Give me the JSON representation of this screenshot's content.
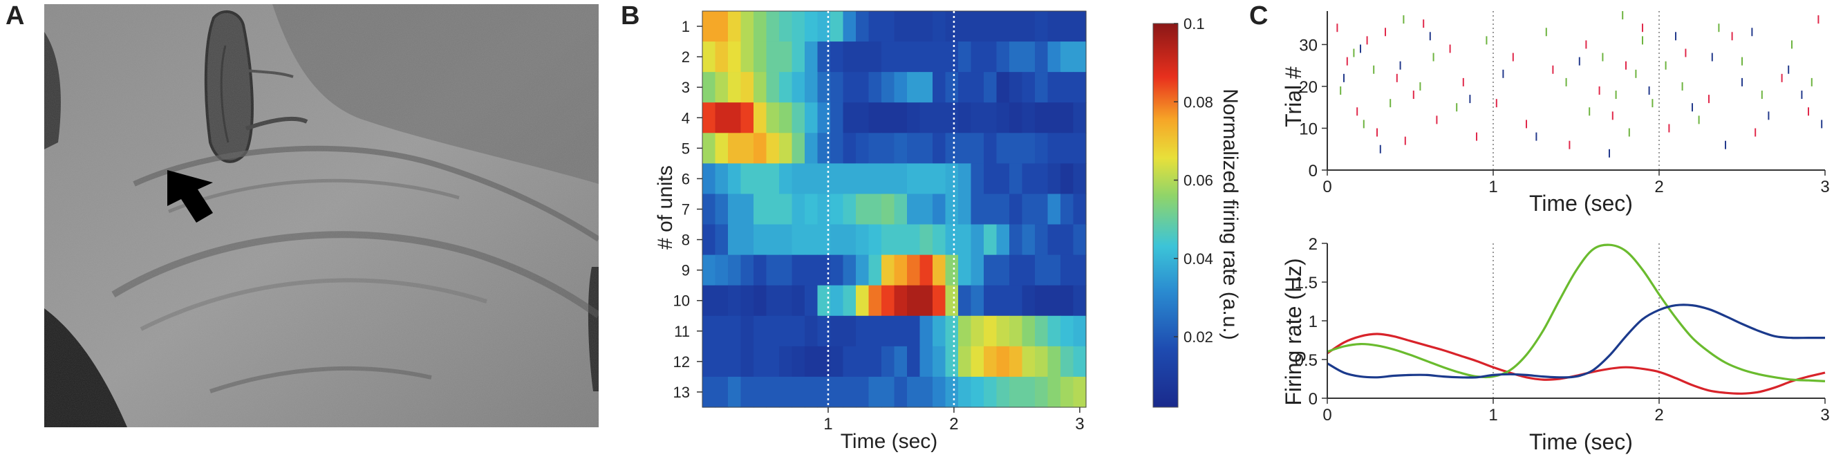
{
  "panels": {
    "a": {
      "letter": "A"
    },
    "b": {
      "letter": "B"
    },
    "c": {
      "letter": "C"
    }
  },
  "chart_data": [
    {
      "panel": "A",
      "type": "other",
      "description_free": true
    },
    {
      "panel": "B",
      "type": "heatmap",
      "xlabel": "Time (sec)",
      "ylabel": "# of units",
      "xlim": [
        0,
        3.05
      ],
      "xticks": [
        1,
        2,
        3
      ],
      "xtick_labels": [
        "1",
        "2",
        "3"
      ],
      "row_labels": [
        "1",
        "2",
        "3",
        "4",
        "5",
        "6",
        "7",
        "8",
        "9",
        "10",
        "11",
        "12",
        "13"
      ],
      "dashed_vlines": [
        1,
        2
      ],
      "colorbar": {
        "label": "Normalized firing rate (a.u.)",
        "range": [
          0.002,
          0.1
        ],
        "ticks": [
          0.02,
          0.04,
          0.06,
          0.08,
          0.1
        ],
        "tick_labels": [
          "0.02",
          "0.04",
          "0.06",
          "0.08",
          "0.1"
        ]
      },
      "n_cols": 30,
      "bin_width_sec": 0.1,
      "values": [
        [
          0.075,
          0.075,
          0.068,
          0.06,
          0.055,
          0.05,
          0.047,
          0.045,
          0.042,
          0.04,
          0.045,
          0.03,
          0.02,
          0.015,
          0.015,
          0.012,
          0.012,
          0.012,
          0.014,
          0.012,
          0.012,
          0.012,
          0.012,
          0.012,
          0.012,
          0.012,
          0.014,
          0.012,
          0.012,
          0.012
        ],
        [
          0.065,
          0.07,
          0.066,
          0.06,
          0.055,
          0.05,
          0.05,
          0.045,
          0.035,
          0.02,
          0.015,
          0.012,
          0.012,
          0.012,
          0.015,
          0.015,
          0.015,
          0.015,
          0.015,
          0.015,
          0.02,
          0.015,
          0.015,
          0.02,
          0.025,
          0.025,
          0.02,
          0.03,
          0.035,
          0.035
        ],
        [
          0.055,
          0.06,
          0.065,
          0.068,
          0.058,
          0.05,
          0.045,
          0.04,
          0.035,
          0.025,
          0.02,
          0.015,
          0.015,
          0.02,
          0.025,
          0.03,
          0.035,
          0.035,
          0.015,
          0.02,
          0.015,
          0.015,
          0.02,
          0.008,
          0.012,
          0.015,
          0.02,
          0.015,
          0.015,
          0.015
        ],
        [
          0.085,
          0.09,
          0.09,
          0.085,
          0.068,
          0.058,
          0.055,
          0.048,
          0.04,
          0.03,
          0.02,
          0.01,
          0.01,
          0.008,
          0.008,
          0.008,
          0.01,
          0.012,
          0.012,
          0.012,
          0.01,
          0.012,
          0.012,
          0.01,
          0.008,
          0.01,
          0.008,
          0.008,
          0.008,
          0.012
        ],
        [
          0.058,
          0.065,
          0.072,
          0.072,
          0.075,
          0.068,
          0.062,
          0.052,
          0.035,
          0.025,
          0.02,
          0.015,
          0.018,
          0.02,
          0.02,
          0.022,
          0.02,
          0.02,
          0.015,
          0.02,
          0.02,
          0.02,
          0.015,
          0.02,
          0.02,
          0.02,
          0.018,
          0.015,
          0.015,
          0.015
        ],
        [
          0.03,
          0.035,
          0.04,
          0.045,
          0.045,
          0.045,
          0.04,
          0.038,
          0.038,
          0.038,
          0.038,
          0.038,
          0.038,
          0.038,
          0.038,
          0.038,
          0.04,
          0.04,
          0.04,
          0.038,
          0.035,
          0.02,
          0.015,
          0.015,
          0.02,
          0.015,
          0.015,
          0.012,
          0.008,
          0.012
        ],
        [
          0.02,
          0.025,
          0.035,
          0.035,
          0.045,
          0.045,
          0.045,
          0.04,
          0.042,
          0.04,
          0.042,
          0.045,
          0.05,
          0.05,
          0.052,
          0.048,
          0.035,
          0.035,
          0.03,
          0.038,
          0.035,
          0.02,
          0.02,
          0.02,
          0.015,
          0.02,
          0.02,
          0.03,
          0.02,
          0.015
        ],
        [
          0.015,
          0.02,
          0.035,
          0.035,
          0.038,
          0.038,
          0.038,
          0.04,
          0.04,
          0.04,
          0.038,
          0.038,
          0.04,
          0.042,
          0.045,
          0.045,
          0.045,
          0.048,
          0.045,
          0.04,
          0.04,
          0.035,
          0.045,
          0.035,
          0.02,
          0.025,
          0.02,
          0.015,
          0.015,
          0.02
        ],
        [
          0.03,
          0.028,
          0.025,
          0.02,
          0.015,
          0.02,
          0.02,
          0.015,
          0.015,
          0.015,
          0.018,
          0.025,
          0.035,
          0.045,
          0.07,
          0.075,
          0.08,
          0.085,
          0.072,
          0.055,
          0.04,
          0.035,
          0.02,
          0.02,
          0.015,
          0.015,
          0.02,
          0.02,
          0.015,
          0.015
        ],
        [
          0.01,
          0.01,
          0.012,
          0.01,
          0.008,
          0.012,
          0.012,
          0.01,
          0.015,
          0.045,
          0.04,
          0.045,
          0.065,
          0.08,
          0.085,
          0.092,
          0.095,
          0.095,
          0.085,
          0.06,
          0.02,
          0.025,
          0.015,
          0.015,
          0.015,
          0.01,
          0.008,
          0.008,
          0.008,
          0.012
        ],
        [
          0.015,
          0.015,
          0.015,
          0.012,
          0.015,
          0.015,
          0.015,
          0.015,
          0.012,
          0.015,
          0.012,
          0.012,
          0.015,
          0.015,
          0.015,
          0.015,
          0.015,
          0.03,
          0.038,
          0.045,
          0.058,
          0.062,
          0.065,
          0.062,
          0.06,
          0.055,
          0.05,
          0.045,
          0.042,
          0.04
        ],
        [
          0.015,
          0.015,
          0.015,
          0.012,
          0.015,
          0.015,
          0.012,
          0.01,
          0.008,
          0.008,
          0.01,
          0.015,
          0.015,
          0.015,
          0.02,
          0.025,
          0.015,
          0.03,
          0.035,
          0.045,
          0.06,
          0.065,
          0.072,
          0.075,
          0.072,
          0.062,
          0.06,
          0.055,
          0.048,
          0.045
        ],
        [
          0.02,
          0.02,
          0.025,
          0.02,
          0.02,
          0.02,
          0.02,
          0.02,
          0.02,
          0.02,
          0.02,
          0.02,
          0.02,
          0.025,
          0.025,
          0.02,
          0.025,
          0.025,
          0.03,
          0.035,
          0.04,
          0.042,
          0.045,
          0.048,
          0.05,
          0.05,
          0.052,
          0.055,
          0.058,
          0.06
        ]
      ]
    },
    {
      "panel": "C-top",
      "type": "scatter",
      "xlabel": "Time (sec)",
      "ylabel": "Trial #",
      "xlim": [
        0,
        3
      ],
      "ylim": [
        0,
        38
      ],
      "xticks": [
        0,
        1,
        2,
        3
      ],
      "yticks": [
        0,
        10,
        20,
        30
      ],
      "dashed_vlines": [
        1,
        2
      ],
      "series": [
        {
          "color": "#e0284a",
          "points": [
            [
              0.06,
              34
            ],
            [
              0.12,
              26
            ],
            [
              0.18,
              14
            ],
            [
              0.24,
              31
            ],
            [
              0.3,
              9
            ],
            [
              0.35,
              33
            ],
            [
              0.42,
              22
            ],
            [
              0.47,
              7
            ],
            [
              0.52,
              18
            ],
            [
              0.58,
              35
            ],
            [
              0.66,
              12
            ],
            [
              0.74,
              29
            ],
            [
              0.82,
              21
            ],
            [
              0.9,
              8
            ],
            [
              1.02,
              16
            ],
            [
              1.12,
              27
            ],
            [
              1.2,
              11
            ],
            [
              1.36,
              24
            ],
            [
              1.46,
              6
            ],
            [
              1.56,
              30
            ],
            [
              1.64,
              19
            ],
            [
              1.72,
              13
            ],
            [
              1.8,
              25
            ],
            [
              1.9,
              34
            ],
            [
              2.06,
              10
            ],
            [
              2.16,
              28
            ],
            [
              2.3,
              17
            ],
            [
              2.44,
              32
            ],
            [
              2.58,
              9
            ],
            [
              2.74,
              22
            ],
            [
              2.9,
              14
            ],
            [
              2.96,
              36
            ]
          ]
        },
        {
          "color": "#6db33f",
          "points": [
            [
              0.08,
              19
            ],
            [
              0.16,
              28
            ],
            [
              0.22,
              11
            ],
            [
              0.28,
              24
            ],
            [
              0.38,
              16
            ],
            [
              0.46,
              36
            ],
            [
              0.56,
              20
            ],
            [
              0.64,
              27
            ],
            [
              0.78,
              15
            ],
            [
              0.96,
              31
            ],
            [
              1.32,
              33
            ],
            [
              1.44,
              21
            ],
            [
              1.58,
              14
            ],
            [
              1.66,
              27
            ],
            [
              1.74,
              18
            ],
            [
              1.78,
              37
            ],
            [
              1.82,
              9
            ],
            [
              1.86,
              23
            ],
            [
              1.9,
              31
            ],
            [
              1.96,
              16
            ],
            [
              2.04,
              25
            ],
            [
              2.14,
              20
            ],
            [
              2.24,
              12
            ],
            [
              2.36,
              34
            ],
            [
              2.5,
              26
            ],
            [
              2.62,
              18
            ],
            [
              2.8,
              30
            ],
            [
              2.92,
              21
            ]
          ]
        },
        {
          "color": "#233a8c",
          "points": [
            [
              0.1,
              22
            ],
            [
              0.2,
              29
            ],
            [
              0.32,
              5
            ],
            [
              0.44,
              25
            ],
            [
              0.62,
              32
            ],
            [
              0.86,
              17
            ],
            [
              1.06,
              23
            ],
            [
              1.26,
              8
            ],
            [
              1.52,
              26
            ],
            [
              1.7,
              4
            ],
            [
              1.94,
              19
            ],
            [
              2.1,
              32
            ],
            [
              2.2,
              15
            ],
            [
              2.32,
              27
            ],
            [
              2.4,
              6
            ],
            [
              2.5,
              21
            ],
            [
              2.56,
              33
            ],
            [
              2.66,
              13
            ],
            [
              2.78,
              24
            ],
            [
              2.86,
              18
            ],
            [
              2.98,
              11
            ]
          ]
        }
      ]
    },
    {
      "panel": "C-bottom",
      "type": "line",
      "xlabel": "Time (sec)",
      "ylabel": "Firing rate (Hz)",
      "xlim": [
        0,
        3
      ],
      "ylim": [
        0,
        2
      ],
      "xticks": [
        0,
        1,
        2,
        3
      ],
      "yticks": [
        0,
        0.5,
        1,
        1.5,
        2
      ],
      "ytick_labels": [
        "0",
        "0.5",
        "1",
        "1.5",
        "2"
      ],
      "dashed_vlines": [
        1,
        2
      ],
      "x": [
        0,
        0.1,
        0.2,
        0.3,
        0.4,
        0.5,
        0.6,
        0.7,
        0.8,
        0.9,
        1.0,
        1.1,
        1.2,
        1.3,
        1.4,
        1.5,
        1.6,
        1.7,
        1.8,
        1.9,
        2.0,
        2.1,
        2.2,
        2.3,
        2.4,
        2.5,
        2.6,
        2.7,
        2.8,
        2.9,
        3.0
      ],
      "series": [
        {
          "color": "#d8232a",
          "values": [
            0.58,
            0.72,
            0.8,
            0.83,
            0.8,
            0.74,
            0.68,
            0.62,
            0.55,
            0.48,
            0.4,
            0.33,
            0.27,
            0.24,
            0.25,
            0.29,
            0.34,
            0.38,
            0.4,
            0.38,
            0.34,
            0.26,
            0.17,
            0.1,
            0.07,
            0.06,
            0.08,
            0.14,
            0.22,
            0.28,
            0.33
          ]
        },
        {
          "color": "#6abb2e",
          "values": [
            0.6,
            0.67,
            0.7,
            0.68,
            0.63,
            0.56,
            0.48,
            0.4,
            0.33,
            0.28,
            0.28,
            0.36,
            0.56,
            0.87,
            1.27,
            1.65,
            1.92,
            1.98,
            1.9,
            1.66,
            1.34,
            1.04,
            0.78,
            0.6,
            0.46,
            0.37,
            0.31,
            0.27,
            0.24,
            0.23,
            0.22
          ]
        },
        {
          "color": "#1b3a8c",
          "values": [
            0.45,
            0.33,
            0.28,
            0.27,
            0.29,
            0.3,
            0.3,
            0.28,
            0.27,
            0.27,
            0.3,
            0.31,
            0.3,
            0.28,
            0.27,
            0.28,
            0.36,
            0.55,
            0.8,
            1.02,
            1.14,
            1.2,
            1.2,
            1.15,
            1.06,
            0.96,
            0.87,
            0.8,
            0.78,
            0.78,
            0.78
          ]
        }
      ]
    }
  ]
}
